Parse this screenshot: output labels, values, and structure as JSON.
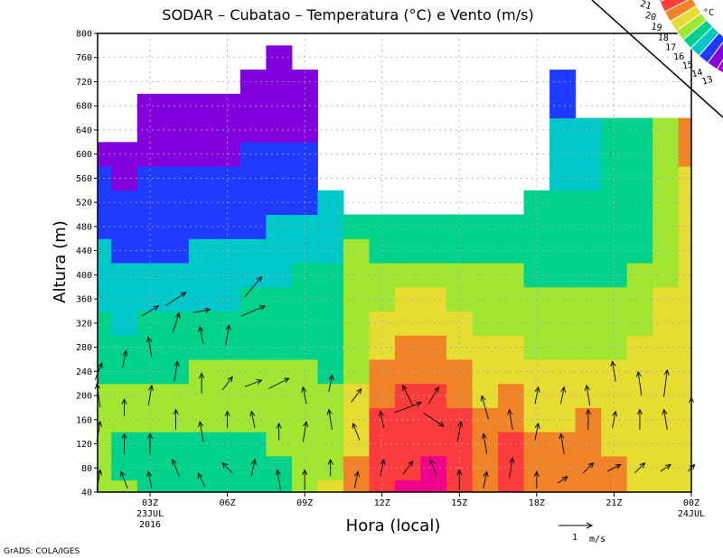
{
  "chart_data": {
    "type": "heatmap",
    "title": "SODAR – Cubatao – Temperatura (°C) e Vento (m/s)",
    "xlabel": "Hora (local)",
    "ylabel": "Altura (m)",
    "ylim": [
      40,
      800
    ],
    "xlim_hours": [
      1,
      24
    ],
    "grid": true,
    "y_ticks": [
      "800",
      "760",
      "720",
      "680",
      "640",
      "600",
      "560",
      "520",
      "480",
      "440",
      "400",
      "360",
      "320",
      "280",
      "240",
      "200",
      "160",
      "120",
      "80",
      "40"
    ],
    "x_ticks": [
      {
        "hour": 3,
        "label": "03Z",
        "sub1": "23JUL",
        "sub2": "2016"
      },
      {
        "hour": 6,
        "label": "06Z"
      },
      {
        "hour": 9,
        "label": "09Z"
      },
      {
        "hour": 12,
        "label": "12Z"
      },
      {
        "hour": 15,
        "label": "15Z"
      },
      {
        "hour": 18,
        "label": "18Z"
      },
      {
        "hour": 21,
        "label": "21Z"
      },
      {
        "hour": 24,
        "label": "00Z",
        "sub1": "24JUL"
      }
    ],
    "heights": [
      40,
      80,
      120,
      160,
      200,
      240,
      280,
      320,
      360,
      400,
      440,
      480,
      520,
      560,
      600,
      640,
      680,
      720,
      760
    ],
    "temperature_columns_by_hour": [
      [
        17.5,
        17.5,
        17.5,
        17.5,
        17.5,
        16.5,
        16.5,
        16.5,
        15.5,
        15.5,
        15.5,
        14.5,
        14.5,
        14.5,
        13.5
      ],
      [
        17.5,
        16.5,
        16.5,
        17.5,
        17.5,
        16.5,
        16.5,
        15.5,
        15.5,
        15.5,
        14.5,
        14.5,
        14.5,
        13.5,
        13.5
      ],
      [
        16.5,
        16.5,
        16.5,
        17.5,
        17.5,
        16.5,
        16.5,
        16.5,
        15.5,
        15.5,
        14.5,
        14.5,
        14.5,
        14.5,
        13.5,
        13.5,
        13.5
      ],
      [
        16.5,
        16.5,
        16.5,
        17.5,
        17.5,
        16.5,
        16.5,
        16.5,
        15.5,
        15.5,
        14.5,
        14.5,
        14.5,
        14.5,
        13.5,
        13.5,
        13.5
      ],
      [
        16.5,
        16.5,
        16.5,
        17.5,
        17.5,
        17.5,
        16.5,
        16.5,
        15.5,
        15.5,
        15.5,
        14.5,
        14.5,
        14.5,
        13.5,
        13.5,
        13.5
      ],
      [
        16.5,
        16.5,
        16.5,
        17.5,
        17.5,
        17.5,
        16.5,
        16.5,
        15.5,
        15.5,
        15.5,
        14.5,
        14.5,
        14.5,
        13.5,
        13.5,
        13.5
      ],
      [
        16.5,
        16.5,
        16.5,
        17.5,
        17.5,
        17.5,
        16.5,
        16.5,
        16.5,
        15.5,
        15.5,
        14.5,
        14.5,
        14.5,
        14.5,
        13.5,
        13.5,
        13.5
      ],
      [
        16.5,
        16.5,
        17.5,
        17.5,
        17.5,
        17.5,
        16.5,
        16.5,
        16.5,
        15.5,
        15.5,
        15.5,
        14.5,
        14.5,
        14.5,
        13.5,
        13.5,
        13.5,
        13.5
      ],
      [
        17.5,
        17.5,
        17.5,
        17.5,
        17.5,
        17.5,
        16.5,
        16.5,
        16.5,
        16.5,
        15.5,
        15.5,
        14.5,
        14.5,
        14.5,
        13.5,
        13.5,
        13.5
      ],
      [
        18.5,
        17.5,
        17.5,
        17.5,
        17.5,
        16.5,
        16.5,
        16.5,
        16.5,
        16.5,
        15.5,
        15.5,
        15.5
      ],
      [
        19.5,
        19.5,
        18.5,
        18.5,
        18.5,
        17.5,
        17.5,
        17.5,
        17.5,
        17.5,
        17.5,
        16.5
      ],
      [
        20.5,
        20.5,
        20.5,
        20.5,
        19.5,
        19.5,
        18.5,
        18.5,
        17.5,
        17.5,
        16.5,
        16.5
      ],
      [
        21.5,
        20.5,
        20.5,
        20.5,
        20.5,
        19.5,
        19.5,
        18.5,
        18.5,
        17.5,
        16.5,
        16.5
      ],
      [
        21.5,
        21.5,
        20.5,
        20.5,
        20.5,
        19.5,
        19.5,
        18.5,
        18.5,
        17.5,
        16.5,
        16.5
      ],
      [
        20.5,
        20.5,
        20.5,
        20.5,
        19.5,
        19.5,
        18.5,
        18.5,
        17.5,
        17.5,
        16.5,
        16.5
      ],
      [
        19.5,
        19.5,
        19.5,
        19.5,
        18.5,
        18.5,
        18.5,
        17.5,
        17.5,
        17.5,
        16.5,
        16.5
      ],
      [
        20.5,
        20.5,
        20.5,
        19.5,
        19.5,
        18.5,
        18.5,
        17.5,
        17.5,
        17.5,
        16.5,
        16.5
      ],
      [
        19.5,
        19.5,
        19.5,
        18.5,
        18.5,
        18.5,
        17.5,
        17.5,
        17.5,
        16.5,
        16.5,
        16.5,
        16.5
      ],
      [
        19.5,
        19.5,
        19.5,
        18.5,
        18.5,
        18.5,
        17.5,
        17.5,
        17.5,
        16.5,
        16.5,
        16.5,
        16.5,
        15.5,
        15.5,
        15.5,
        14.5,
        14.5
      ],
      [
        19.5,
        19.5,
        19.5,
        19.5,
        18.5,
        18.5,
        17.5,
        17.5,
        17.5,
        16.5,
        16.5,
        16.5,
        16.5,
        15.5,
        15.5,
        15.5
      ],
      [
        19.5,
        19.5,
        18.5,
        18.5,
        18.5,
        18.5,
        17.5,
        17.5,
        17.5,
        16.5,
        16.5,
        16.5,
        16.5,
        16.5,
        16.5,
        16.5
      ],
      [
        18.5,
        18.5,
        18.5,
        18.5,
        18.5,
        18.5,
        18.5,
        17.5,
        17.5,
        17.5,
        16.5,
        16.5,
        16.5,
        16.5,
        16.5,
        16.5
      ],
      [
        18.5,
        18.5,
        18.5,
        18.5,
        18.5,
        18.5,
        18.5,
        18.5,
        18.5,
        17.5,
        17.5,
        17.5,
        17.5,
        17.5,
        17.5,
        17.5
      ],
      [
        18.5,
        18.5,
        18.5,
        18.5,
        18.5,
        18.5,
        18.5,
        18.5,
        18.5,
        18.5,
        18.5,
        18.5,
        18.5,
        18.5,
        19.5,
        19.5
      ]
    ],
    "levels": [
      13,
      14,
      15,
      16,
      17,
      18,
      19,
      20,
      21
    ],
    "level_labels": [
      "13",
      "14",
      "15",
      "16",
      "17",
      "18",
      "19",
      "20",
      "21"
    ],
    "level_unit": "°C",
    "colors": [
      "#a000c8",
      "#8200dc",
      "#1e3cff",
      "#00c8c8",
      "#00d28c",
      "#a0e632",
      "#e6dc32",
      "#f08228",
      "#fa3c3c",
      "#f0008c"
    ],
    "wind_vectors_hour_height_u_v": [
      [
        1,
        60,
        0.1,
        0.6
      ],
      [
        1,
        140,
        0.1,
        0.6
      ],
      [
        1,
        200,
        -0.1,
        0.7
      ],
      [
        1,
        240,
        0.2,
        0.5
      ],
      [
        2,
        60,
        -0.2,
        0.5
      ],
      [
        2,
        120,
        0.0,
        0.6
      ],
      [
        2,
        180,
        0.0,
        0.5
      ],
      [
        2,
        260,
        0.1,
        0.5
      ],
      [
        3,
        60,
        -0.1,
        0.5
      ],
      [
        3,
        120,
        0.0,
        0.6
      ],
      [
        3,
        200,
        0.1,
        0.6
      ],
      [
        3,
        280,
        -0.1,
        0.6
      ],
      [
        3,
        340,
        0.5,
        0.3
      ],
      [
        4,
        80,
        -0.2,
        0.5
      ],
      [
        4,
        160,
        0.0,
        0.6
      ],
      [
        4,
        240,
        0.1,
        0.6
      ],
      [
        4,
        320,
        0.2,
        0.6
      ],
      [
        4,
        360,
        0.6,
        0.4
      ],
      [
        5,
        60,
        -0.2,
        0.4
      ],
      [
        5,
        140,
        -0.1,
        0.6
      ],
      [
        5,
        220,
        0.0,
        0.6
      ],
      [
        5,
        300,
        -0.1,
        0.5
      ],
      [
        5,
        340,
        0.5,
        0.1
      ],
      [
        6,
        80,
        -0.3,
        0.3
      ],
      [
        6,
        160,
        0.0,
        0.5
      ],
      [
        6,
        220,
        0.3,
        0.4
      ],
      [
        6,
        300,
        0.1,
        0.6
      ],
      [
        7,
        80,
        0.1,
        0.5
      ],
      [
        7,
        160,
        -0.1,
        0.5
      ],
      [
        7,
        220,
        0.5,
        0.2
      ],
      [
        7,
        340,
        0.7,
        0.3
      ],
      [
        7,
        380,
        0.5,
        0.6
      ],
      [
        8,
        60,
        -0.1,
        0.6
      ],
      [
        8,
        140,
        0.0,
        0.5
      ],
      [
        8,
        220,
        0.6,
        0.3
      ],
      [
        9,
        60,
        0.0,
        0.6
      ],
      [
        9,
        140,
        0.1,
        0.6
      ],
      [
        9,
        200,
        -0.1,
        0.5
      ],
      [
        10,
        80,
        0.0,
        0.5
      ],
      [
        10,
        160,
        -0.1,
        0.6
      ],
      [
        10,
        220,
        0.1,
        0.5
      ],
      [
        11,
        60,
        0.1,
        0.5
      ],
      [
        11,
        140,
        -0.2,
        0.5
      ],
      [
        11,
        200,
        0.3,
        0.4
      ],
      [
        12,
        80,
        0.1,
        0.5
      ],
      [
        12,
        160,
        -0.1,
        0.5
      ],
      [
        13,
        80,
        0.3,
        0.4
      ],
      [
        13,
        180,
        0.8,
        0.3
      ],
      [
        13,
        200,
        -0.3,
        0.6
      ],
      [
        14,
        80,
        -0.2,
        0.5
      ],
      [
        14,
        160,
        0.6,
        -0.4
      ],
      [
        14,
        200,
        0.3,
        0.5
      ],
      [
        15,
        60,
        0.0,
        0.6
      ],
      [
        15,
        140,
        0.1,
        0.6
      ],
      [
        16,
        60,
        0.1,
        0.5
      ],
      [
        16,
        120,
        -0.1,
        0.6
      ],
      [
        16,
        180,
        -0.2,
        0.7
      ],
      [
        17,
        80,
        0.1,
        0.6
      ],
      [
        17,
        160,
        -0.1,
        0.6
      ],
      [
        18,
        60,
        0.0,
        0.5
      ],
      [
        18,
        140,
        0.1,
        0.5
      ],
      [
        18,
        200,
        0.1,
        0.5
      ],
      [
        19,
        60,
        0.3,
        0.2
      ],
      [
        19,
        120,
        -0.1,
        0.6
      ],
      [
        19,
        200,
        0.1,
        0.5
      ],
      [
        20,
        80,
        0.3,
        0.3
      ],
      [
        20,
        160,
        0.0,
        0.6
      ],
      [
        20,
        200,
        -0.1,
        0.6
      ],
      [
        21,
        80,
        0.4,
        0.2
      ],
      [
        21,
        160,
        0.1,
        0.5
      ],
      [
        21,
        240,
        -0.1,
        0.6
      ],
      [
        22,
        80,
        0.3,
        0.3
      ],
      [
        22,
        160,
        0.0,
        0.6
      ],
      [
        22,
        220,
        -0.1,
        0.7
      ],
      [
        23,
        80,
        0.3,
        0.2
      ],
      [
        23,
        160,
        -0.1,
        0.6
      ],
      [
        23,
        220,
        0.1,
        0.8
      ],
      [
        24,
        80,
        0.2,
        0.2
      ],
      [
        24,
        180,
        0.0,
        0.6
      ]
    ],
    "reference_vector": {
      "value": 1,
      "label_value": "1",
      "label_unit": "m/s"
    }
  },
  "footer": {
    "credit": "GrADS: COLA/IGES"
  }
}
